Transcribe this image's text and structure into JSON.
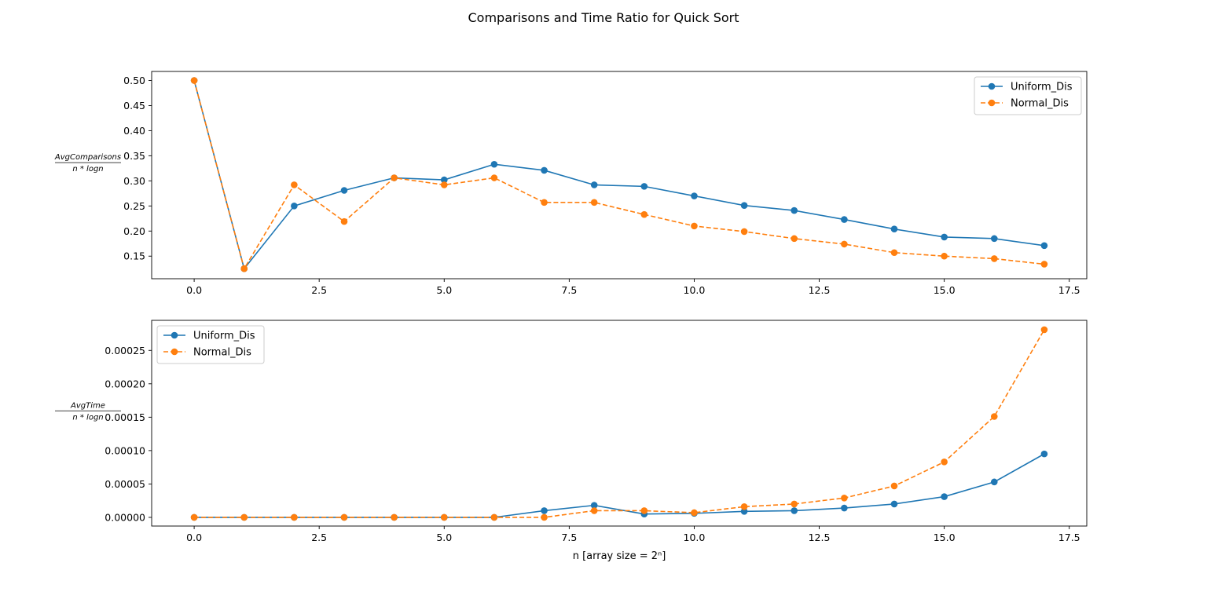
{
  "figure": {
    "title": "Comparisons and Time Ratio for Quick Sort"
  },
  "chart_data": [
    {
      "type": "line",
      "title": "",
      "ylabel_num": "AvgComparisons",
      "ylabel_den": "n * logn",
      "xlabel": "",
      "xlim": [
        -0.85,
        17.85
      ],
      "ylim": [
        0.105,
        0.518
      ],
      "xticks": [
        0.0,
        2.5,
        5.0,
        7.5,
        10.0,
        12.5,
        15.0,
        17.5
      ],
      "xtick_labels": [
        "0.0",
        "2.5",
        "5.0",
        "7.5",
        "10.0",
        "12.5",
        "15.0",
        "17.5"
      ],
      "yticks": [
        0.15,
        0.2,
        0.25,
        0.3,
        0.35,
        0.4,
        0.45,
        0.5
      ],
      "ytick_labels": [
        "0.15",
        "0.20",
        "0.25",
        "0.30",
        "0.35",
        "0.40",
        "0.45",
        "0.50"
      ],
      "legend": "top-right",
      "grid": false,
      "x": [
        0,
        1,
        2,
        3,
        4,
        5,
        6,
        7,
        8,
        9,
        10,
        11,
        12,
        13,
        14,
        15,
        16,
        17
      ],
      "series": [
        {
          "name": "Uniform_Dis",
          "color": "#1f77b4",
          "dash": "solid",
          "values": [
            0.5,
            0.125,
            0.25,
            0.281,
            0.306,
            0.302,
            0.333,
            0.321,
            0.292,
            0.289,
            0.27,
            0.251,
            0.241,
            0.223,
            0.204,
            0.188,
            0.185,
            0.171
          ]
        },
        {
          "name": "Normal_Dis",
          "color": "#ff7f0e",
          "dash": "dashed",
          "values": [
            0.5,
            0.125,
            0.292,
            0.219,
            0.306,
            0.292,
            0.306,
            0.257,
            0.257,
            0.233,
            0.21,
            0.199,
            0.185,
            0.174,
            0.157,
            0.15,
            0.145,
            0.134
          ]
        }
      ]
    },
    {
      "type": "line",
      "title": "",
      "ylabel_num": "AvgTime",
      "ylabel_den": "n * logn",
      "xlabel": "n [array size = 2ⁿ]",
      "xlim": [
        -0.85,
        17.85
      ],
      "ylim": [
        -1.3e-05,
        0.000295
      ],
      "xticks": [
        0.0,
        2.5,
        5.0,
        7.5,
        10.0,
        12.5,
        15.0,
        17.5
      ],
      "xtick_labels": [
        "0.0",
        "2.5",
        "5.0",
        "7.5",
        "10.0",
        "12.5",
        "15.0",
        "17.5"
      ],
      "yticks": [
        0.0,
        5e-05,
        0.0001,
        0.00015,
        0.0002,
        0.00025
      ],
      "ytick_labels": [
        "0.00000",
        "0.00005",
        "0.00010",
        "0.00015",
        "0.00020",
        "0.00025"
      ],
      "legend": "top-left",
      "grid": false,
      "x": [
        0,
        1,
        2,
        3,
        4,
        5,
        6,
        7,
        8,
        9,
        10,
        11,
        12,
        13,
        14,
        15,
        16,
        17
      ],
      "series": [
        {
          "name": "Uniform_Dis",
          "color": "#1f77b4",
          "dash": "solid",
          "values": [
            0,
            0,
            0,
            0,
            0,
            0,
            0,
            1e-05,
            1.8e-05,
            5e-06,
            6e-06,
            9e-06,
            1e-05,
            1.4e-05,
            2e-05,
            3.1e-05,
            5.3e-05,
            9.5e-05
          ]
        },
        {
          "name": "Normal_Dis",
          "color": "#ff7f0e",
          "dash": "dashed",
          "values": [
            0,
            0,
            0,
            0,
            0,
            0,
            0,
            0,
            1e-05,
            1e-05,
            7e-06,
            1.6e-05,
            2e-05,
            2.9e-05,
            4.7e-05,
            8.3e-05,
            0.000151,
            0.000281
          ]
        }
      ]
    }
  ]
}
